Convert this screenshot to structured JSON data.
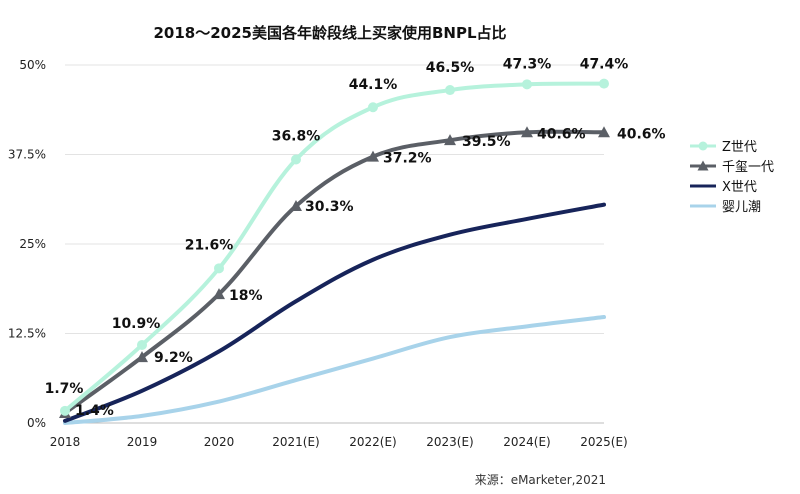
{
  "chart_data": {
    "type": "line",
    "title": "2018～2025美国各年龄段线上买家使用BNPL占比",
    "x": [
      "2018",
      "2019",
      "2020",
      "2021(E)",
      "2022(E)",
      "2023(E)",
      "2024(E)",
      "2025(E)"
    ],
    "yticks": [
      "0%",
      "12.5%",
      "25%",
      "37.5%",
      "50%"
    ],
    "ylim": [
      0,
      50
    ],
    "grid": true,
    "legend_position": "right",
    "series": [
      {
        "name": "Z世代",
        "color": "#b6f2dc",
        "marker": "circle",
        "values": [
          1.7,
          10.9,
          21.6,
          36.8,
          44.1,
          46.5,
          47.3,
          47.4
        ],
        "labels": [
          "1.7%",
          "10.9%",
          "21.6%",
          "36.8%",
          "44.1%",
          "46.5%",
          "47.3%",
          "47.4%"
        ]
      },
      {
        "name": "千玺一代",
        "color": "#5b5f66",
        "marker": "triangle",
        "values": [
          1.4,
          9.2,
          18,
          30.3,
          37.2,
          39.5,
          40.6,
          40.6
        ],
        "labels": [
          "1.4%",
          "9.2%",
          "18%",
          "30.3%",
          "37.2%",
          "39.5%",
          "40.6%",
          "40.6%"
        ]
      },
      {
        "name": "X世代",
        "color": "#17245a",
        "marker": "none",
        "values": [
          0.3,
          4.5,
          10,
          17,
          22.8,
          26.3,
          28.5,
          30.5
        ]
      },
      {
        "name": "婴儿潮",
        "color": "#a8d3ea",
        "marker": "none",
        "values": [
          0,
          1,
          3,
          6,
          9,
          12,
          13.5,
          14.8
        ]
      }
    ],
    "source": "来源：eMarketer,2021"
  }
}
